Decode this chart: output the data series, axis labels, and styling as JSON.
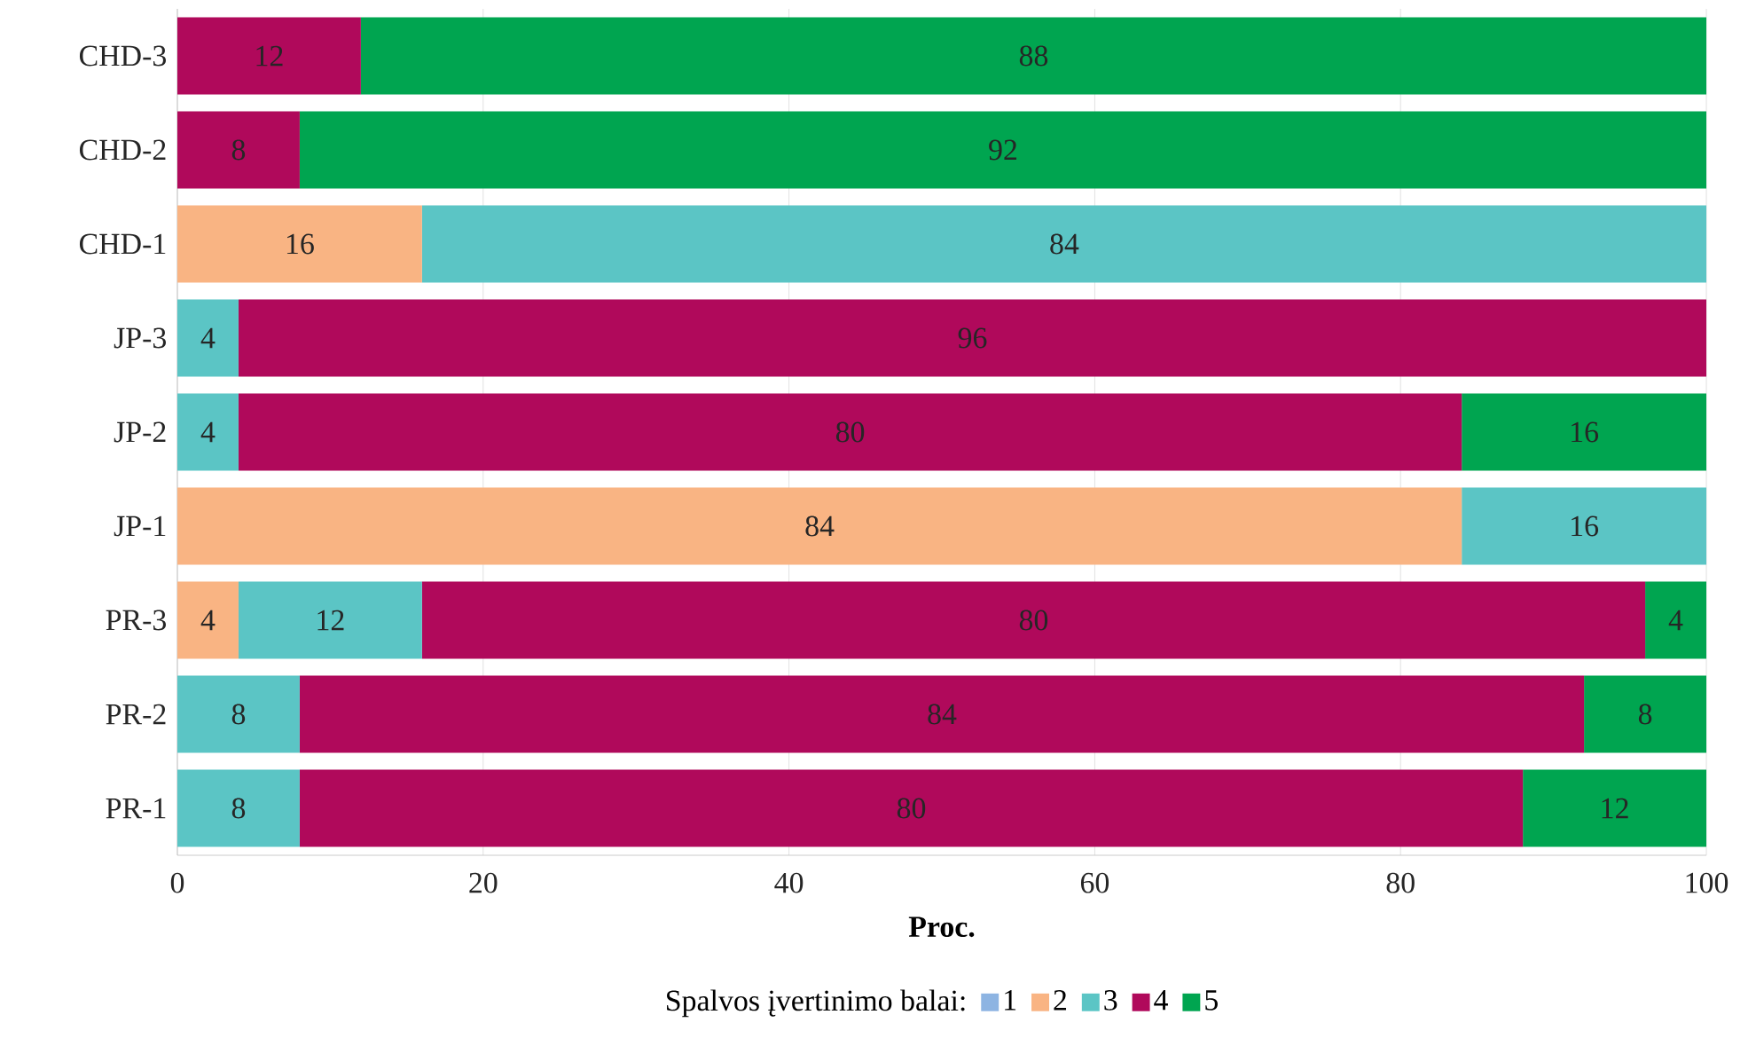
{
  "chart_data": {
    "type": "bar",
    "orientation": "horizontal",
    "stacked": true,
    "categories": [
      "CHD-3",
      "CHD-2",
      "CHD-1",
      "JP-3",
      "JP-2",
      "JP-1",
      "PR-3",
      "PR-2",
      "PR-1"
    ],
    "series": [
      {
        "name": "1",
        "color": "#8db4e2",
        "values": [
          null,
          null,
          null,
          null,
          null,
          null,
          null,
          null,
          null
        ]
      },
      {
        "name": "2",
        "color": "#f9b483",
        "values": [
          null,
          null,
          16,
          null,
          null,
          84,
          4,
          null,
          null
        ]
      },
      {
        "name": "3",
        "color": "#5bc5c5",
        "values": [
          null,
          null,
          84,
          4,
          4,
          16,
          12,
          8,
          8
        ]
      },
      {
        "name": "4",
        "color": "#b0095b",
        "values": [
          12,
          8,
          null,
          96,
          80,
          null,
          80,
          84,
          80
        ]
      },
      {
        "name": "5",
        "color": "#00a550",
        "values": [
          88,
          92,
          null,
          null,
          16,
          null,
          4,
          8,
          12
        ]
      }
    ],
    "xlim": [
      0,
      100
    ],
    "xticks": [
      0,
      20,
      40,
      60,
      80,
      100
    ],
    "xlabel": "Proc.",
    "legend_title": "Spalvos įvertinimo balai:",
    "legend": "bottom",
    "grid": "x",
    "data_labels": true
  }
}
